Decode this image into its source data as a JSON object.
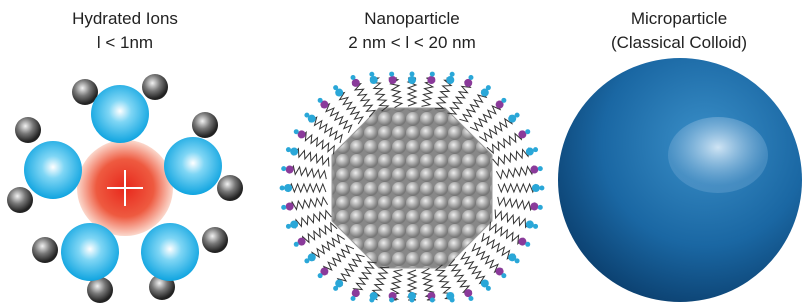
{
  "panels": [
    {
      "title": "Hydrated Ions",
      "size": "l < 1nm"
    },
    {
      "title": "Nanoparticle",
      "size": "2 nm < l < 20 nm"
    },
    {
      "title": "Microparticle",
      "size": "(Classical Colloid)"
    }
  ]
}
